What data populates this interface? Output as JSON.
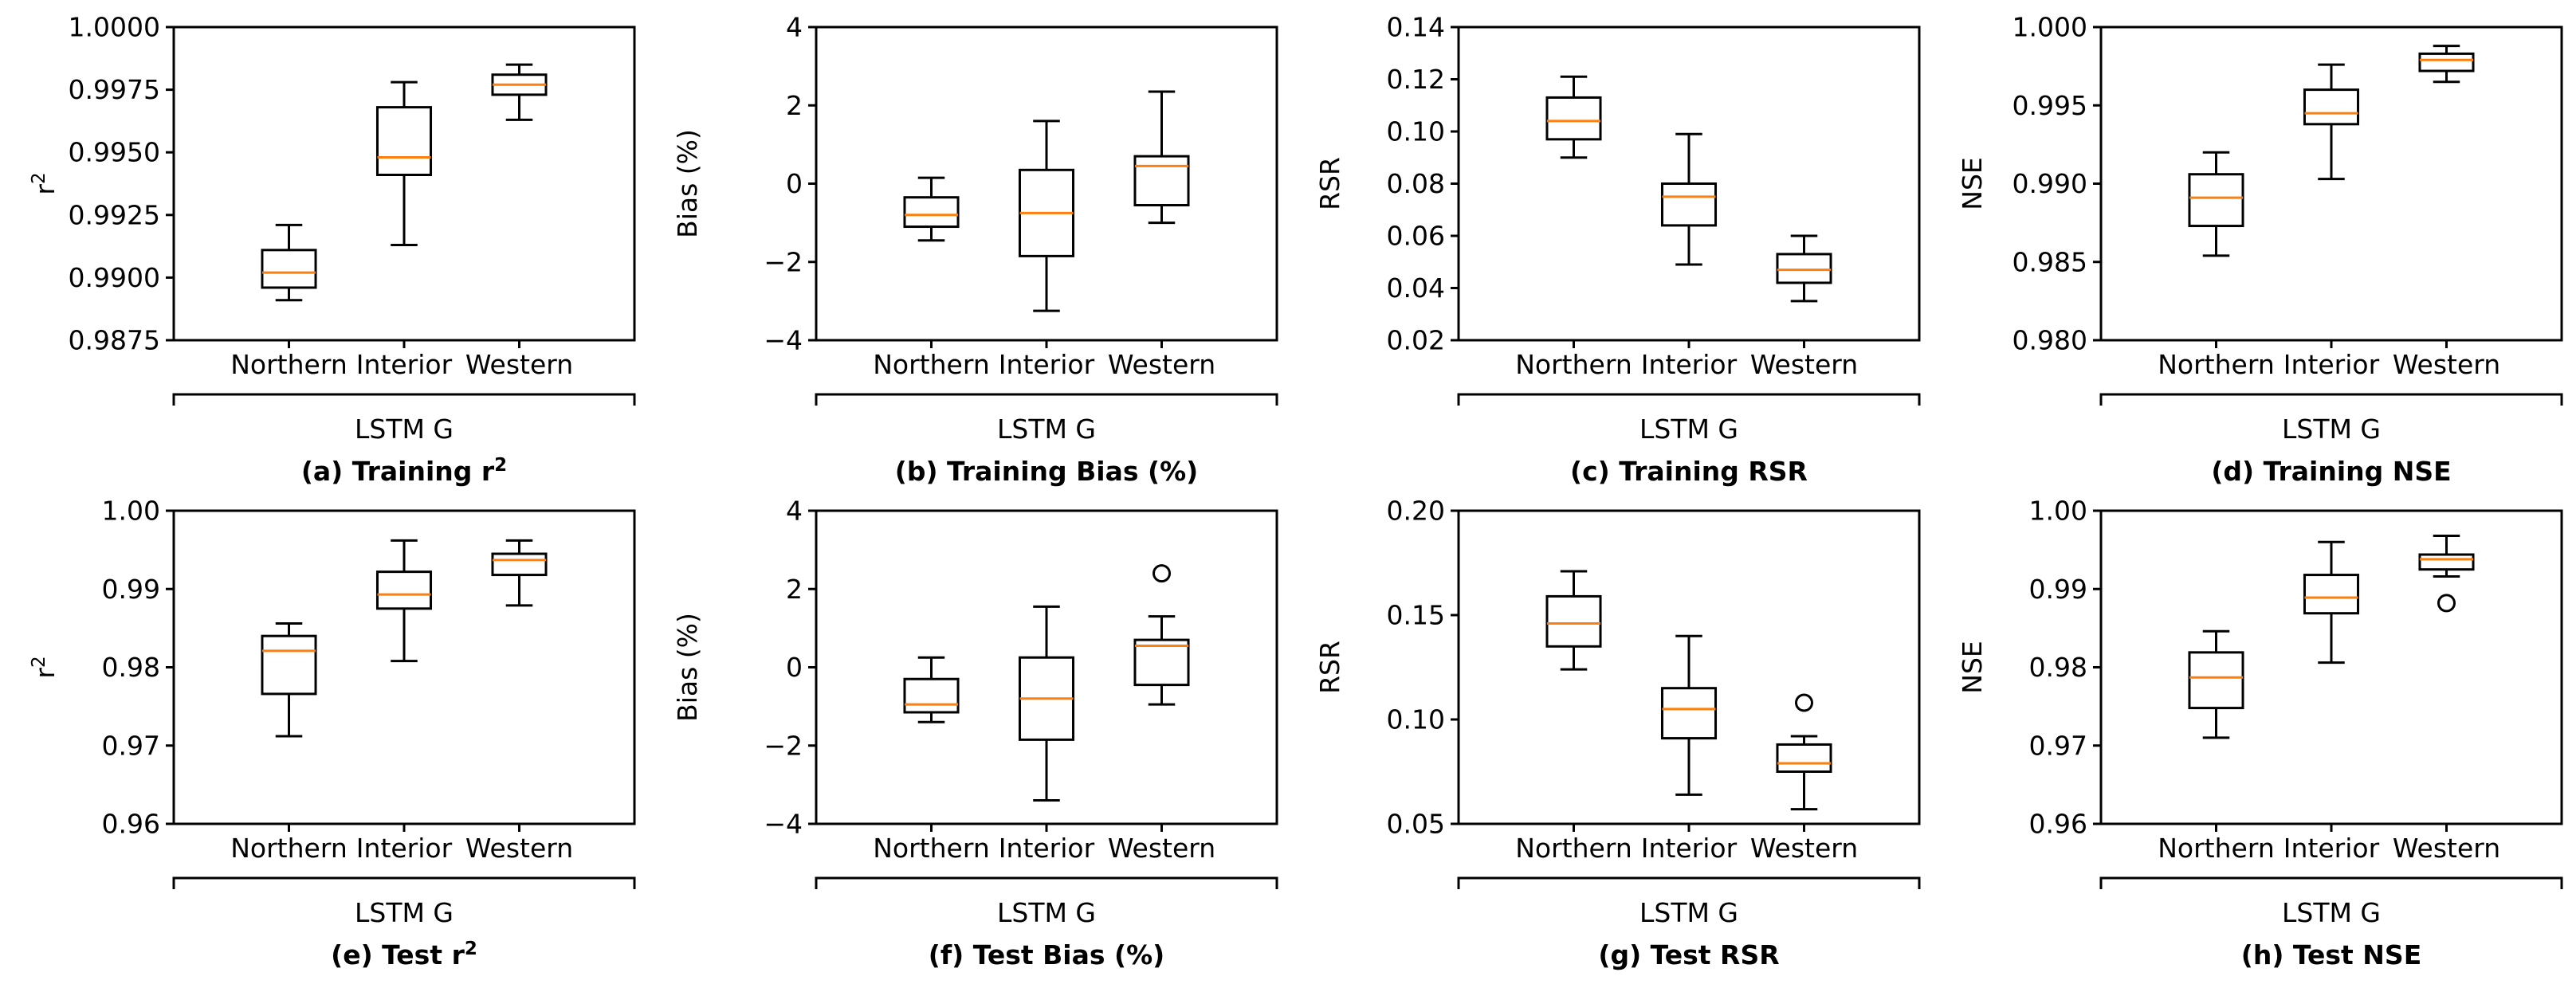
{
  "figure": {
    "group_label": "LSTM G"
  },
  "chart_data": [
    {
      "type": "boxplot",
      "caption": "(a) Training r",
      "caption_sup": "2",
      "ylabel": "r",
      "ylabel_sup": "2",
      "ylim": [
        0.9875,
        1.0
      ],
      "yticks": [
        0.9875,
        0.99,
        0.9925,
        0.995,
        0.9975,
        1.0
      ],
      "ytick_labels": [
        "0.9875",
        "0.9900",
        "0.9925",
        "0.9950",
        "0.9975",
        "1.0000"
      ],
      "categories": [
        "Northern",
        "Interior",
        "Western"
      ],
      "group_label": "LSTM G",
      "boxes": [
        {
          "whislo": 0.9891,
          "q1": 0.9896,
          "med": 0.9902,
          "q3": 0.9911,
          "whishi": 0.9921,
          "fliers": []
        },
        {
          "whislo": 0.9913,
          "q1": 0.9941,
          "med": 0.9948,
          "q3": 0.9968,
          "whishi": 0.9978,
          "fliers": []
        },
        {
          "whislo": 0.9963,
          "q1": 0.9973,
          "med": 0.9977,
          "q3": 0.9981,
          "whishi": 0.9985,
          "fliers": []
        }
      ]
    },
    {
      "type": "boxplot",
      "caption": "(b) Training Bias (%)",
      "caption_sup": "",
      "ylabel": "Bias (%)",
      "ylabel_sup": "",
      "ylim": [
        -4,
        4
      ],
      "yticks": [
        -4,
        -2,
        0,
        2,
        4
      ],
      "ytick_labels": [
        "−4",
        "−2",
        "0",
        "2",
        "4"
      ],
      "categories": [
        "Northern",
        "Interior",
        "Western"
      ],
      "group_label": "LSTM G",
      "boxes": [
        {
          "whislo": -1.45,
          "q1": -1.1,
          "med": -0.8,
          "q3": -0.35,
          "whishi": 0.15,
          "fliers": []
        },
        {
          "whislo": -3.25,
          "q1": -1.85,
          "med": -0.75,
          "q3": 0.35,
          "whishi": 1.6,
          "fliers": []
        },
        {
          "whislo": -1.0,
          "q1": -0.55,
          "med": 0.45,
          "q3": 0.7,
          "whishi": 2.35,
          "fliers": []
        }
      ]
    },
    {
      "type": "boxplot",
      "caption": "(c) Training RSR",
      "caption_sup": "",
      "ylabel": "RSR",
      "ylabel_sup": "",
      "ylim": [
        0.02,
        0.14
      ],
      "yticks": [
        0.02,
        0.04,
        0.06,
        0.08,
        0.1,
        0.12,
        0.14
      ],
      "ytick_labels": [
        "0.02",
        "0.04",
        "0.06",
        "0.08",
        "0.10",
        "0.12",
        "0.14"
      ],
      "categories": [
        "Northern",
        "Interior",
        "Western"
      ],
      "group_label": "LSTM G",
      "boxes": [
        {
          "whislo": 0.09,
          "q1": 0.097,
          "med": 0.104,
          "q3": 0.113,
          "whishi": 0.121,
          "fliers": []
        },
        {
          "whislo": 0.049,
          "q1": 0.064,
          "med": 0.075,
          "q3": 0.08,
          "whishi": 0.099,
          "fliers": []
        },
        {
          "whislo": 0.035,
          "q1": 0.042,
          "med": 0.047,
          "q3": 0.053,
          "whishi": 0.06,
          "fliers": []
        }
      ]
    },
    {
      "type": "boxplot",
      "caption": "(d) Training NSE",
      "caption_sup": "",
      "ylabel": "NSE",
      "ylabel_sup": "",
      "ylim": [
        0.98,
        1.0
      ],
      "yticks": [
        0.98,
        0.985,
        0.99,
        0.995,
        1.0
      ],
      "ytick_labels": [
        "0.980",
        "0.985",
        "0.990",
        "0.995",
        "1.000"
      ],
      "categories": [
        "Northern",
        "Interior",
        "Western"
      ],
      "group_label": "LSTM G",
      "boxes": [
        {
          "whislo": 0.9854,
          "q1": 0.9873,
          "med": 0.9891,
          "q3": 0.9906,
          "whishi": 0.992,
          "fliers": []
        },
        {
          "whislo": 0.9903,
          "q1": 0.9938,
          "med": 0.9945,
          "q3": 0.996,
          "whishi": 0.9976,
          "fliers": []
        },
        {
          "whislo": 0.9965,
          "q1": 0.9972,
          "med": 0.9979,
          "q3": 0.9983,
          "whishi": 0.9988,
          "fliers": []
        }
      ]
    },
    {
      "type": "boxplot",
      "caption": "(e) Test r",
      "caption_sup": "2",
      "ylabel": "r",
      "ylabel_sup": "2",
      "ylim": [
        0.96,
        1.0
      ],
      "yticks": [
        0.96,
        0.97,
        0.98,
        0.99,
        1.0
      ],
      "ytick_labels": [
        "0.96",
        "0.97",
        "0.98",
        "0.99",
        "1.00"
      ],
      "categories": [
        "Northern",
        "Interior",
        "Western"
      ],
      "group_label": "LSTM G",
      "boxes": [
        {
          "whislo": 0.9712,
          "q1": 0.9766,
          "med": 0.9821,
          "q3": 0.984,
          "whishi": 0.9856,
          "fliers": []
        },
        {
          "whislo": 0.9808,
          "q1": 0.9875,
          "med": 0.9893,
          "q3": 0.9922,
          "whishi": 0.9962,
          "fliers": []
        },
        {
          "whislo": 0.9879,
          "q1": 0.9918,
          "med": 0.9937,
          "q3": 0.9945,
          "whishi": 0.9962,
          "fliers": []
        }
      ]
    },
    {
      "type": "boxplot",
      "caption": "(f) Test Bias (%)",
      "caption_sup": "",
      "ylabel": "Bias (%)",
      "ylabel_sup": "",
      "ylim": [
        -4,
        4
      ],
      "yticks": [
        -4,
        -2,
        0,
        2,
        4
      ],
      "ytick_labels": [
        "−4",
        "−2",
        "0",
        "2",
        "4"
      ],
      "categories": [
        "Northern",
        "Interior",
        "Western"
      ],
      "group_label": "LSTM G",
      "boxes": [
        {
          "whislo": -1.4,
          "q1": -1.15,
          "med": -0.95,
          "q3": -0.3,
          "whishi": 0.25,
          "fliers": []
        },
        {
          "whislo": -3.4,
          "q1": -1.85,
          "med": -0.8,
          "q3": 0.25,
          "whishi": 1.55,
          "fliers": []
        },
        {
          "whislo": -0.95,
          "q1": -0.45,
          "med": 0.55,
          "q3": 0.7,
          "whishi": 1.3,
          "fliers": [
            2.4
          ]
        }
      ]
    },
    {
      "type": "boxplot",
      "caption": "(g) Test RSR",
      "caption_sup": "",
      "ylabel": "RSR",
      "ylabel_sup": "",
      "ylim": [
        0.05,
        0.2
      ],
      "yticks": [
        0.05,
        0.1,
        0.15,
        0.2
      ],
      "ytick_labels": [
        "0.05",
        "0.10",
        "0.15",
        "0.20"
      ],
      "categories": [
        "Northern",
        "Interior",
        "Western"
      ],
      "group_label": "LSTM G",
      "boxes": [
        {
          "whislo": 0.124,
          "q1": 0.135,
          "med": 0.146,
          "q3": 0.159,
          "whishi": 0.171,
          "fliers": []
        },
        {
          "whislo": 0.064,
          "q1": 0.091,
          "med": 0.105,
          "q3": 0.115,
          "whishi": 0.14,
          "fliers": []
        },
        {
          "whislo": 0.057,
          "q1": 0.075,
          "med": 0.079,
          "q3": 0.088,
          "whishi": 0.092,
          "fliers": [
            0.108
          ]
        }
      ]
    },
    {
      "type": "boxplot",
      "caption": "(h) Test NSE",
      "caption_sup": "",
      "ylabel": "NSE",
      "ylabel_sup": "",
      "ylim": [
        0.96,
        1.0
      ],
      "yticks": [
        0.96,
        0.97,
        0.98,
        0.99,
        1.0
      ],
      "ytick_labels": [
        "0.96",
        "0.97",
        "0.98",
        "0.99",
        "1.00"
      ],
      "categories": [
        "Northern",
        "Interior",
        "Western"
      ],
      "group_label": "LSTM G",
      "boxes": [
        {
          "whislo": 0.971,
          "q1": 0.9748,
          "med": 0.9787,
          "q3": 0.9819,
          "whishi": 0.9846,
          "fliers": []
        },
        {
          "whislo": 0.9806,
          "q1": 0.9869,
          "med": 0.9889,
          "q3": 0.9918,
          "whishi": 0.996,
          "fliers": []
        },
        {
          "whislo": 0.9916,
          "q1": 0.9925,
          "med": 0.9938,
          "q3": 0.9944,
          "whishi": 0.9968,
          "fliers": [
            0.9882
          ]
        }
      ]
    }
  ]
}
